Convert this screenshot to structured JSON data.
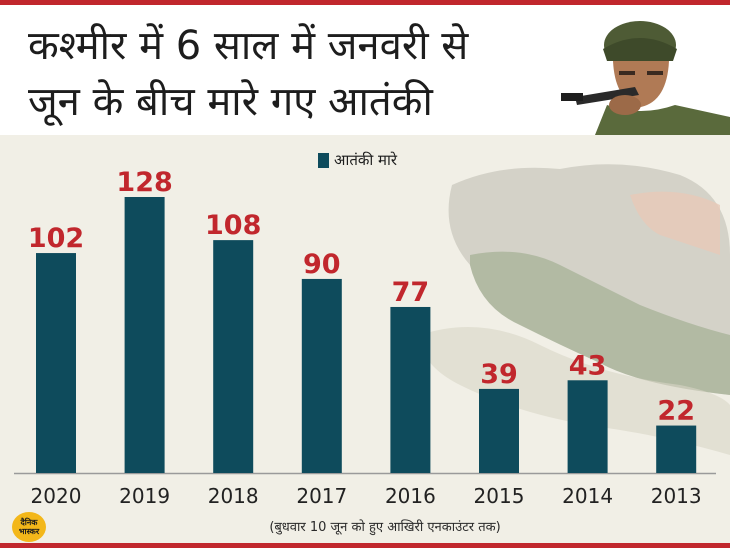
{
  "title_lines": [
    "कश्मीर में 6 साल में जनवरी से",
    "जून के बीच मारे गए आतंकी"
  ],
  "logo_text": "दैनिक भास्कर",
  "footnote": "(बुधवार 10 जून को हुए आखिरी एनकाउंटर तक)",
  "colors": {
    "bar": "#0e4b5c",
    "value_label": "#c1272d",
    "accent": "#c1272d",
    "background": "#f1efe6"
  },
  "chart_data": {
    "type": "bar",
    "categories": [
      "2020",
      "2019",
      "2018",
      "2017",
      "2016",
      "2015",
      "2014",
      "2013"
    ],
    "series": [
      {
        "name": "आतंकी मारे",
        "values": [
          102,
          128,
          108,
          90,
          77,
          39,
          43,
          22
        ]
      }
    ],
    "title": "कश्मीर में 6 साल में जनवरी से जून के बीच मारे गए आतंकी",
    "xlabel": "",
    "ylabel": "",
    "ylim": [
      0,
      128
    ],
    "grid": false,
    "legend": "top-center",
    "data_labels": true
  }
}
